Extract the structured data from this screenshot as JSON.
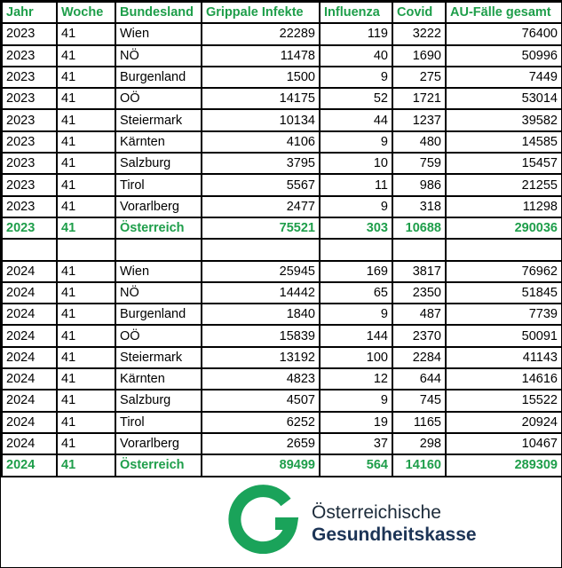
{
  "table": {
    "header": [
      "Jahr",
      "Woche",
      "Bundesland",
      "Grippale Infekte",
      "Influenza",
      "Covid",
      "AU-Fälle gesamt"
    ],
    "sections": [
      {
        "rows": [
          [
            2023,
            41,
            "Wien",
            22289,
            119,
            3222,
            76400
          ],
          [
            2023,
            41,
            "NÖ",
            11478,
            40,
            1690,
            50996
          ],
          [
            2023,
            41,
            "Burgenland",
            1500,
            9,
            275,
            7449
          ],
          [
            2023,
            41,
            "OÖ",
            14175,
            52,
            1721,
            53014
          ],
          [
            2023,
            41,
            "Steiermark",
            10134,
            44,
            1237,
            39582
          ],
          [
            2023,
            41,
            "Kärnten",
            4106,
            9,
            480,
            14585
          ],
          [
            2023,
            41,
            "Salzburg",
            3795,
            10,
            759,
            15457
          ],
          [
            2023,
            41,
            "Tirol",
            5567,
            11,
            986,
            21255
          ],
          [
            2023,
            41,
            "Vorarlberg",
            2477,
            9,
            318,
            11298
          ]
        ],
        "total": [
          2023,
          41,
          "Österreich",
          75521,
          303,
          10688,
          290036
        ]
      },
      {
        "rows": [
          [
            2024,
            41,
            "Wien",
            25945,
            169,
            3817,
            76962
          ],
          [
            2024,
            41,
            "NÖ",
            14442,
            65,
            2350,
            51845
          ],
          [
            2024,
            41,
            "Burgenland",
            1840,
            9,
            487,
            7739
          ],
          [
            2024,
            41,
            "OÖ",
            15839,
            144,
            2370,
            50091
          ],
          [
            2024,
            41,
            "Steiermark",
            13192,
            100,
            2284,
            41143
          ],
          [
            2024,
            41,
            "Kärnten",
            4823,
            12,
            644,
            14616
          ],
          [
            2024,
            41,
            "Salzburg",
            4507,
            9,
            745,
            15522
          ],
          [
            2024,
            41,
            "Tirol",
            6252,
            19,
            1165,
            20924
          ],
          [
            2024,
            41,
            "Vorarlberg",
            2659,
            37,
            298,
            10467
          ]
        ],
        "total": [
          2024,
          41,
          "Österreich",
          89499,
          564,
          14160,
          289309
        ]
      }
    ]
  },
  "logo": {
    "line1": "Österreichische",
    "line2": "Gesundheitskasse"
  }
}
